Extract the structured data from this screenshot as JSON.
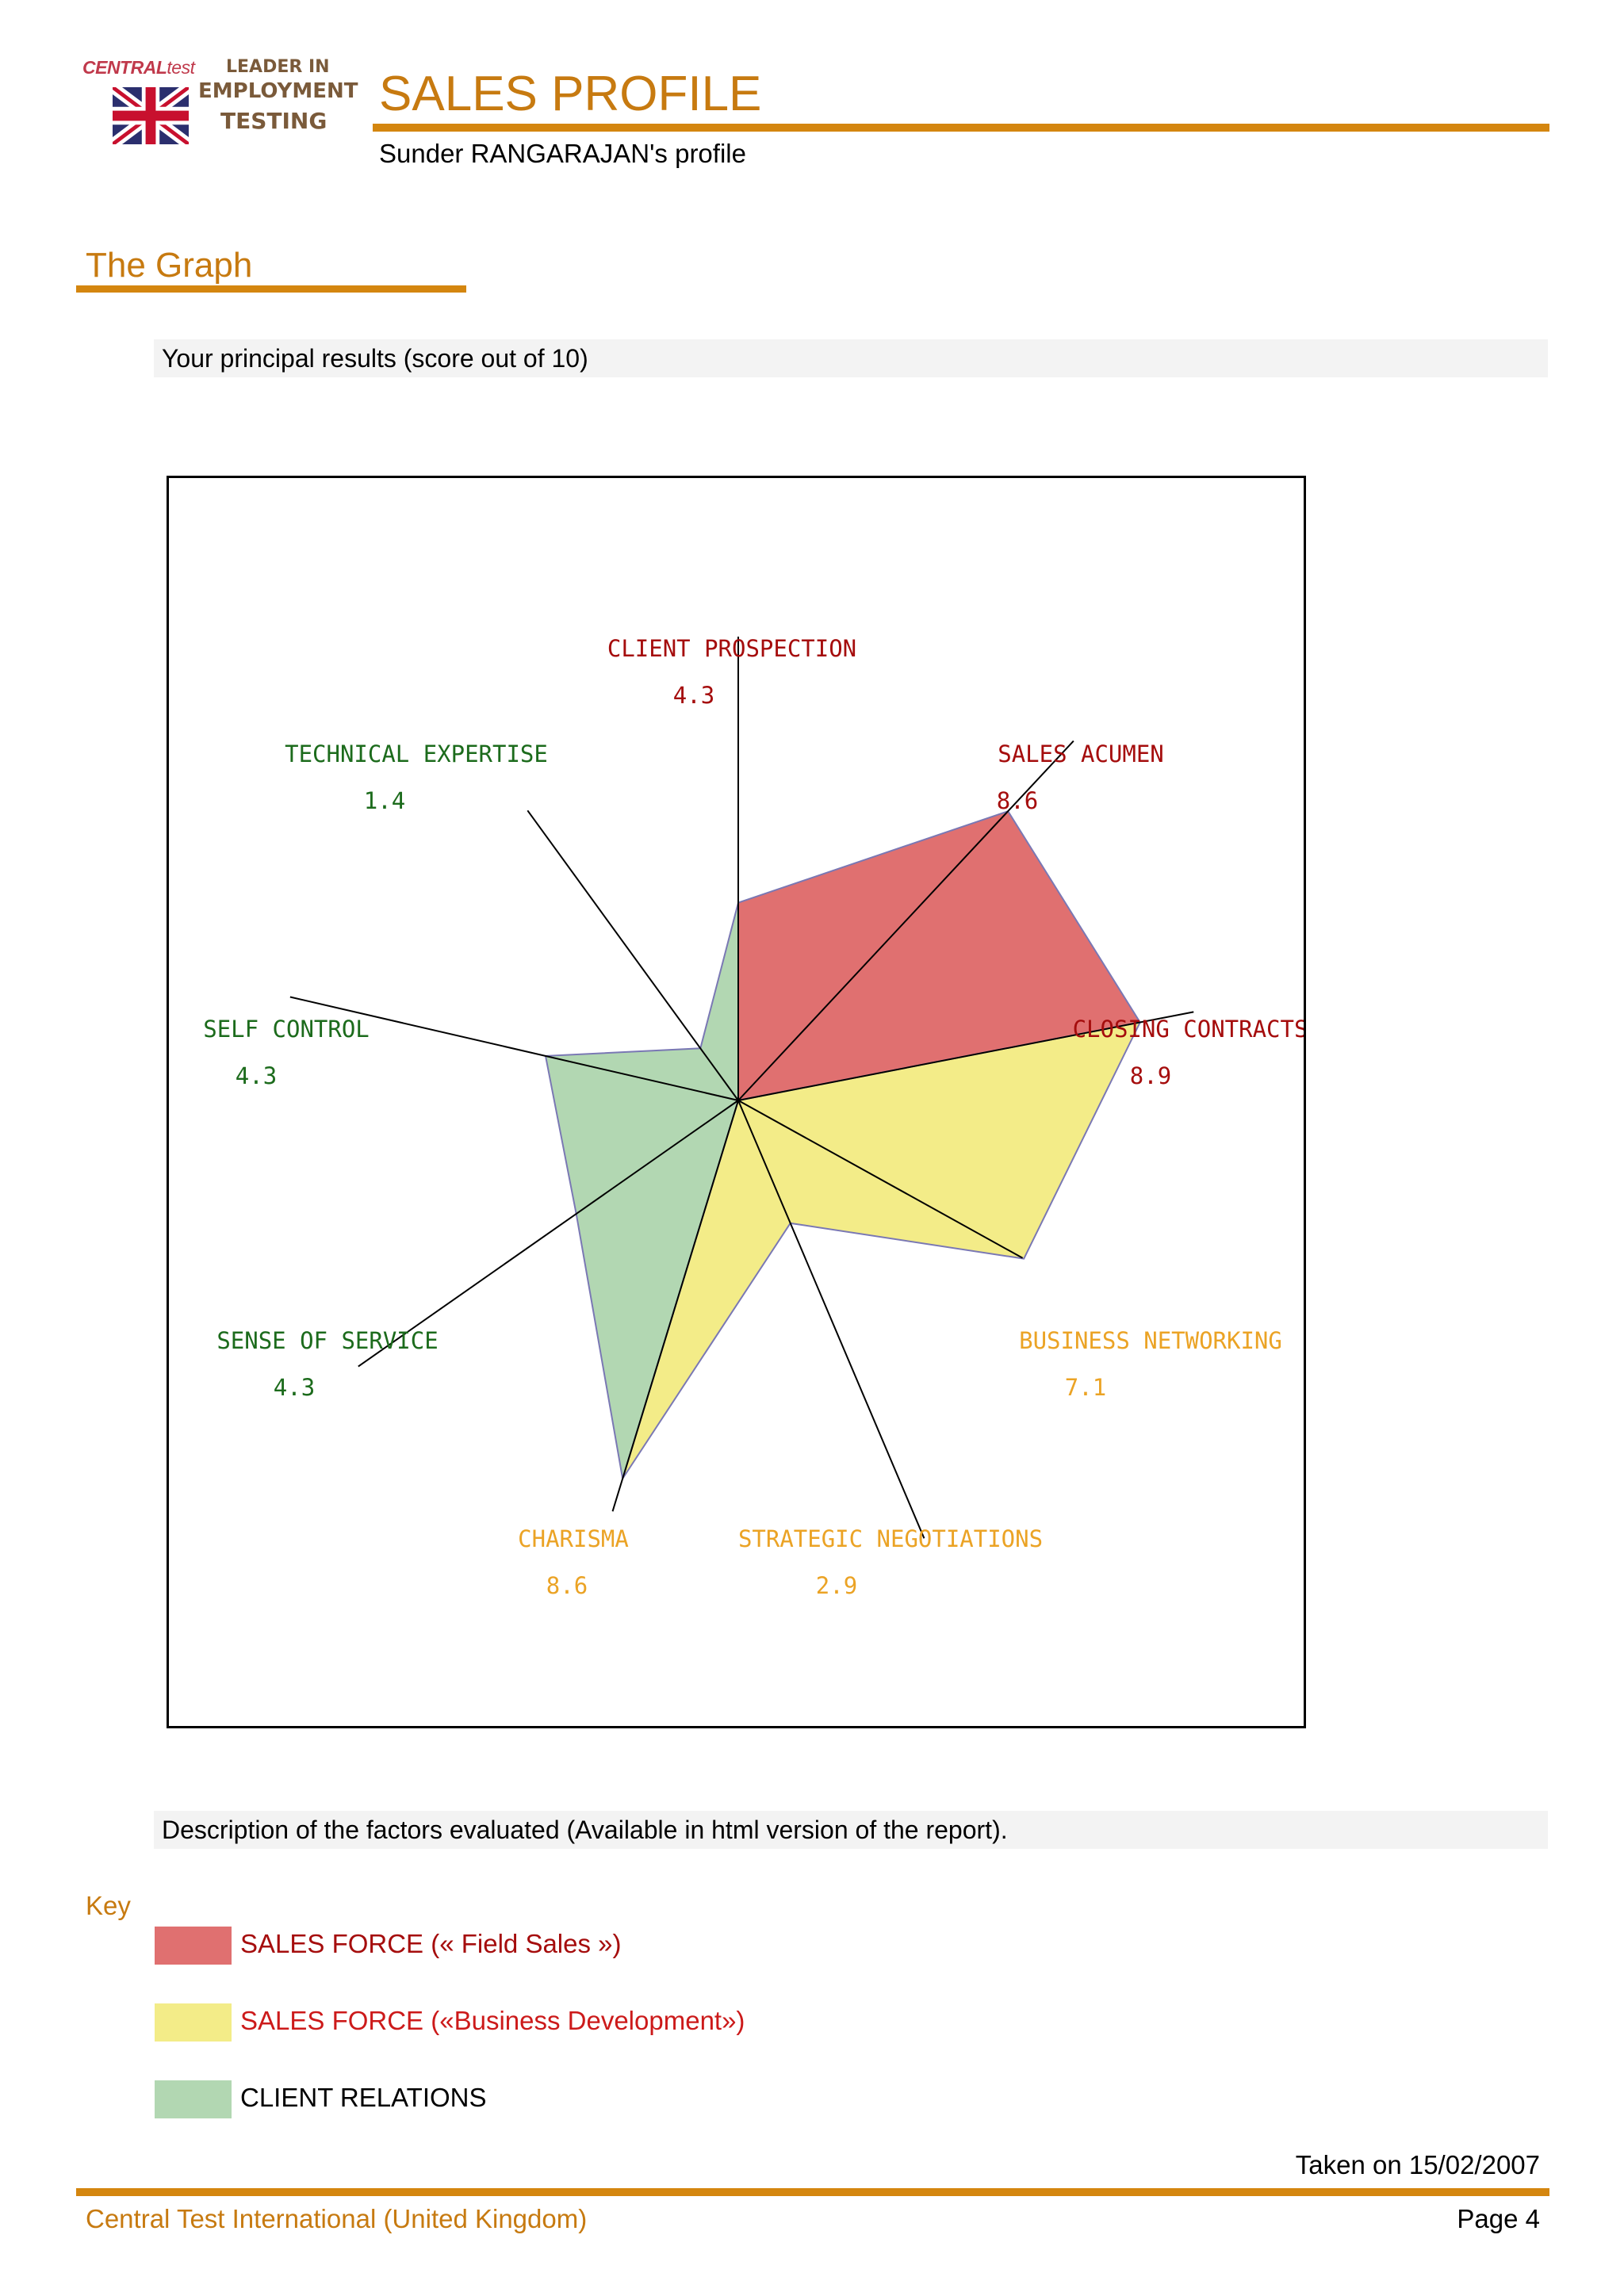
{
  "header": {
    "logo": {
      "brand_upper": "CENTRAL",
      "brand_lower": "test",
      "tag_line_1": "LEADER IN",
      "tag_line_2": "EMPLOYMENT",
      "tag_line_3": "TESTING",
      "flag_icon": "uk-flag-icon"
    },
    "title": "SALES PROFILE",
    "profile_line": "Sunder RANGARAJAN's profile"
  },
  "section": {
    "heading": "The Graph"
  },
  "results_band": "Your principal results (score out of 10)",
  "description_band": "Description of the factors evaluated (Available in html version of the report).",
  "colors": {
    "accent": "#d4860f",
    "field_sales": "#e07070",
    "business_development": "#f3ec88",
    "client_relations": "#b2d7b2",
    "label_red": "#a50d0d",
    "label_yellow": "#eba325",
    "label_green": "#1c6b1c"
  },
  "chart_data": {
    "type": "radar",
    "max": 10,
    "axes": [
      {
        "name": "CLIENT PROSPECTION",
        "value": 4.3,
        "value_label": "4.3",
        "group": "field_sales"
      },
      {
        "name": "SALES ACUMEN",
        "value": 8.6,
        "value_label": "8.6",
        "group": "field_sales"
      },
      {
        "name": "CLOSING CONTRACTS",
        "value": 8.9,
        "value_label": "8.9",
        "group": "field_sales"
      },
      {
        "name": "BUSINESS NETWORKING",
        "value": 7.1,
        "value_label": "7.1",
        "group": "business_development"
      },
      {
        "name": "STRATEGIC NEGOTIATIONS",
        "value": 2.9,
        "value_label": "2.9",
        "group": "business_development"
      },
      {
        "name": "CHARISMA",
        "value": 8.6,
        "value_label": "8.6",
        "group": "business_development"
      },
      {
        "name": "SENSE OF SERVICE",
        "value": 4.3,
        "value_label": "4.3",
        "group": "client_relations"
      },
      {
        "name": "SELF CONTROL",
        "value": 4.3,
        "value_label": "4.3",
        "group": "client_relations"
      },
      {
        "name": "TECHNICAL EXPERTISE",
        "value": 1.4,
        "value_label": "1.4",
        "group": "client_relations"
      }
    ],
    "groups": [
      {
        "key": "field_sales",
        "axes": [
          "CLIENT PROSPECTION",
          "SALES ACUMEN",
          "CLOSING CONTRACTS"
        ]
      },
      {
        "key": "business_development",
        "axes": [
          "CLOSING CONTRACTS",
          "BUSINESS NETWORKING",
          "STRATEGIC NEGOTIATIONS",
          "CHARISMA"
        ]
      },
      {
        "key": "client_relations",
        "axes": [
          "CHARISMA",
          "SENSE OF SERVICE",
          "SELF CONTROL",
          "TECHNICAL EXPERTISE",
          "CLIENT PROSPECTION"
        ]
      }
    ],
    "legend_placement": "bottom-left"
  },
  "key": {
    "heading": "Key",
    "items": [
      {
        "label": "SALES FORCE (« Field Sales »)",
        "color": "#e07070",
        "text_color": "#a50d0d"
      },
      {
        "label": "SALES FORCE («Business Development»)",
        "color": "#f3ec88",
        "text_color": "#cc1a1a"
      },
      {
        "label": "CLIENT RELATIONS",
        "color": "#b2d7b2",
        "text_color": "#000000"
      }
    ]
  },
  "taken_on": "Taken on 15/02/2007",
  "footer": {
    "left": "Central Test International (United Kingdom)",
    "right": "Page 4"
  }
}
